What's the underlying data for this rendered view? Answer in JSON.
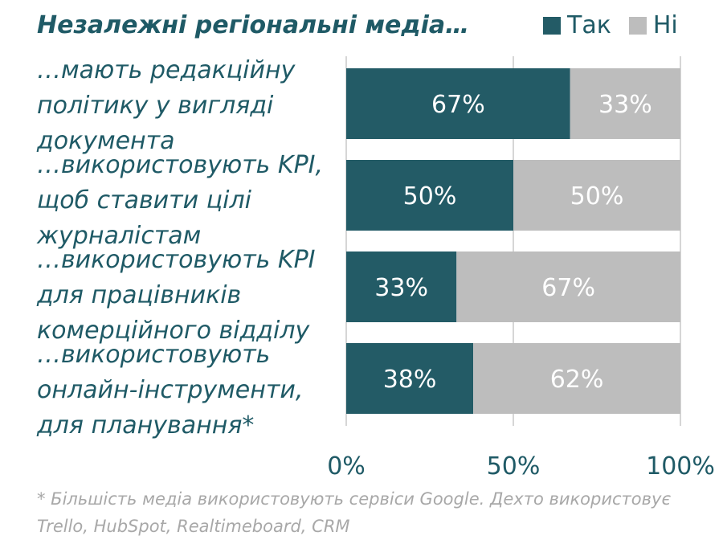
{
  "title": "Незалежні регіональні медіа…",
  "legend": {
    "yes": "Так",
    "no": "Ні"
  },
  "colors": {
    "yes": "#235b66",
    "no": "#bdbdbd",
    "text": "#1f5a66"
  },
  "chart_data": {
    "type": "bar",
    "orientation": "horizontal",
    "stacked": true,
    "categories": [
      "…мають редакційну політику у вигляді документа",
      "…використовують KPI, щоб ставити цілі журналістам",
      "…використовують KPI для працівників комерційного відділу",
      "…використовують онлайн-інструменти, для планування*"
    ],
    "series": [
      {
        "name": "Так",
        "values": [
          67,
          50,
          33,
          38
        ]
      },
      {
        "name": "Ні",
        "values": [
          33,
          50,
          67,
          62
        ]
      }
    ],
    "value_labels": {
      "yes": [
        "67%",
        "50%",
        "33%",
        "38%"
      ],
      "no": [
        "33%",
        "50%",
        "67%",
        "62%"
      ]
    },
    "xlim": [
      0,
      100
    ],
    "xticks": [
      "0%",
      "50%",
      "100%"
    ],
    "grid": "vertical",
    "legend_position": "top-right"
  },
  "footnote": "* Більшість медіа використовують сервіси Google. Дехто використовує Trello, HubSpot, Realtimeboard, CRM"
}
